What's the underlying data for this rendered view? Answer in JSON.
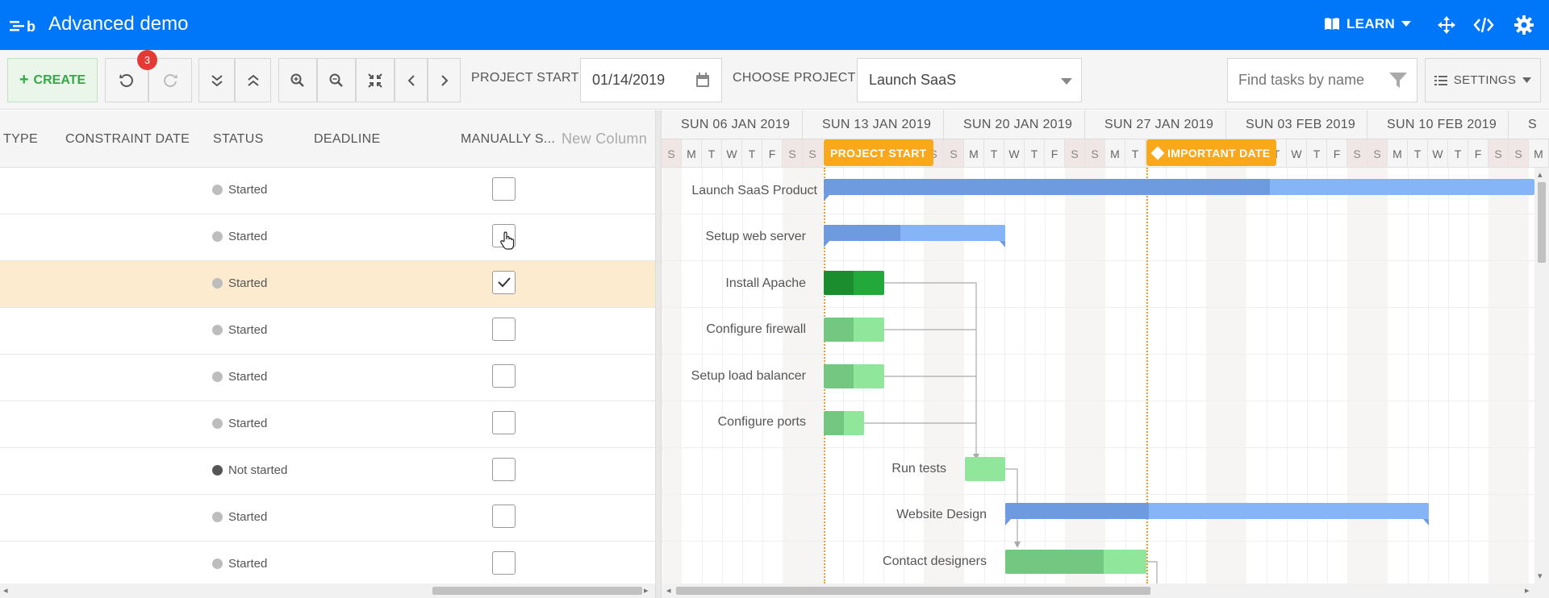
{
  "header": {
    "title": "Advanced demo",
    "learn_label": "LEARN",
    "icons": [
      "logo-icon",
      "book-icon",
      "chevron-down-icon",
      "move-icon",
      "code-icon",
      "gear-icon"
    ]
  },
  "toolbar": {
    "create_label": "CREATE",
    "undo_badge": "3",
    "project_start_label": "PROJECT START",
    "project_start_value": "01/14/2019",
    "choose_project_label": "CHOOSE PROJECT",
    "project_value": "Launch SaaS",
    "search_placeholder": "Find tasks by name",
    "settings_label": "SETTINGS"
  },
  "grid": {
    "columns": [
      "TYPE",
      "CONSTRAINT DATE",
      "STATUS",
      "DEADLINE",
      "MANUALLY S...",
      "New Column"
    ],
    "rows": [
      {
        "status": "Started",
        "manual": false,
        "dot": "light"
      },
      {
        "status": "Started",
        "manual": false,
        "dot": "light"
      },
      {
        "status": "Started",
        "manual": true,
        "dot": "light",
        "selected": true
      },
      {
        "status": "Started",
        "manual": false,
        "dot": "light"
      },
      {
        "status": "Started",
        "manual": false,
        "dot": "light"
      },
      {
        "status": "Started",
        "manual": false,
        "dot": "light"
      },
      {
        "status": "Not started",
        "manual": false,
        "dot": "dark"
      },
      {
        "status": "Started",
        "manual": false,
        "dot": "light"
      },
      {
        "status": "Started",
        "manual": false,
        "dot": "light"
      }
    ]
  },
  "timeline": {
    "weeks": [
      "SUN 06 JAN 2019",
      "SUN 13 JAN 2019",
      "SUN 20 JAN 2019",
      "SUN 27 JAN 2019",
      "SUN 03 FEB 2019",
      "SUN 10 FEB 2019",
      "S"
    ],
    "day_letters": [
      "S",
      "M",
      "T",
      "W",
      "T",
      "F",
      "S"
    ],
    "project_start_flag": "PROJECT START",
    "important_date_flag": "IMPORTANT DATE",
    "tasks": [
      {
        "name": "Launch SaaS Product"
      },
      {
        "name": "Setup web server"
      },
      {
        "name": "Install Apache"
      },
      {
        "name": "Configure firewall"
      },
      {
        "name": "Setup load balancer"
      },
      {
        "name": "Configure ports"
      },
      {
        "name": "Run tests"
      },
      {
        "name": "Website Design"
      },
      {
        "name": "Contact designers"
      }
    ]
  },
  "colors": {
    "header_bg": "#0076f8",
    "create_green": "#35a845",
    "flag_orange": "#f9a81a",
    "parent_bar": "#85b4f7",
    "task_green": "#90e69b",
    "selected_row": "#fdebcf"
  }
}
